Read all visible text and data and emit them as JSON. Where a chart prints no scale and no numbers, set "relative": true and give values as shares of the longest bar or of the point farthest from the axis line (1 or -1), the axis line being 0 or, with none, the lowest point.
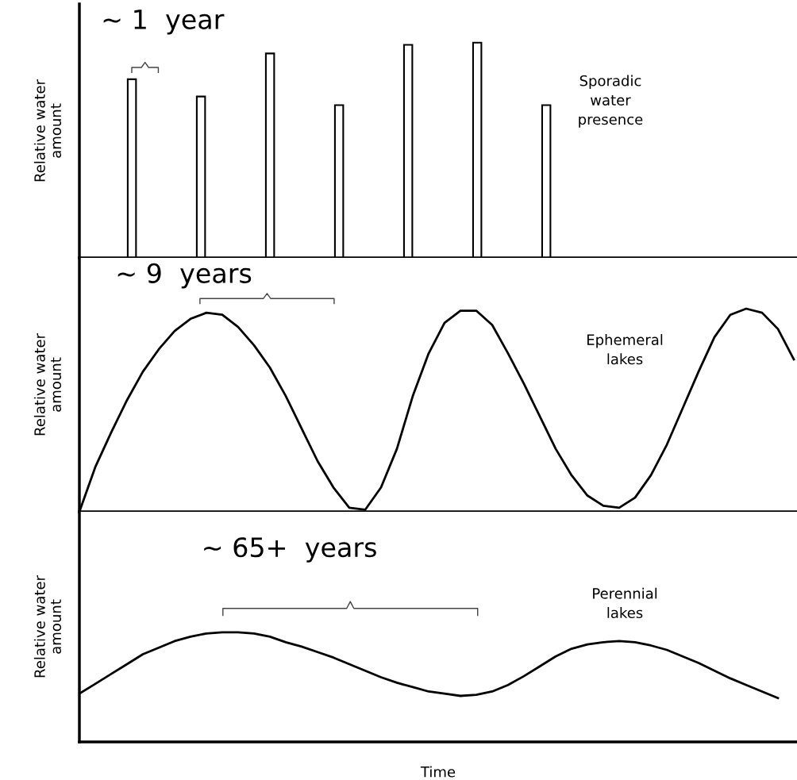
{
  "chart_data": [
    {
      "type": "bar",
      "relative": true,
      "ylabel": "Relative water\namount",
      "categories": [
        null,
        null,
        null,
        null,
        null,
        null,
        null
      ],
      "series": [
        {
          "color": "#ffffff",
          "values": [
            0.83,
            0.75,
            0.95,
            0.71,
            0.99,
            1,
            0.71
          ]
        }
      ],
      "annotations": [
        "~ 1  year",
        "Sporadic\nwater\npresence"
      ],
      "grid": false,
      "legend": false,
      "tick_labels": false
    },
    {
      "type": "line",
      "relative": true,
      "ylabel": "Relative water\namount",
      "categories": [
        null,
        null,
        null,
        null,
        null,
        null,
        null,
        null,
        null,
        null,
        null,
        null,
        null,
        null,
        null,
        null,
        null,
        null,
        null,
        null,
        null,
        null,
        null,
        null,
        null,
        null,
        null,
        null,
        null,
        null,
        null,
        null,
        null,
        null,
        null,
        null,
        null,
        null,
        null,
        null,
        null,
        null,
        null,
        null,
        null,
        null
      ],
      "series": [
        {
          "color": "#000000",
          "values": [
            0,
            0.22,
            0.39,
            0.55,
            0.69,
            0.8,
            0.89,
            0.95,
            0.98,
            0.97,
            0.91,
            0.82,
            0.71,
            0.57,
            0.41,
            0.25,
            0.12,
            0.02,
            0.01,
            0.12,
            0.31,
            0.57,
            0.78,
            0.93,
            0.99,
            0.99,
            0.92,
            0.78,
            0.63,
            0.47,
            0.31,
            0.18,
            0.08,
            0.03,
            0.02,
            0.07,
            0.18,
            0.33,
            0.51,
            0.69,
            0.86,
            0.97,
            1,
            0.98,
            0.9,
            0.75
          ]
        }
      ],
      "annotations": [
        "~ 9  years",
        "Ephemeral\nlakes"
      ],
      "grid": false,
      "legend": false,
      "tick_labels": false,
      "marker": "none",
      "line_style": "solid"
    },
    {
      "type": "line",
      "relative": true,
      "ylabel": "Relative water\namount",
      "xlabel": "Time",
      "categories": [
        null,
        null,
        null,
        null,
        null,
        null,
        null,
        null,
        null,
        null,
        null,
        null,
        null,
        null,
        null,
        null,
        null,
        null,
        null,
        null,
        null,
        null,
        null,
        null,
        null,
        null,
        null,
        null,
        null,
        null,
        null,
        null,
        null,
        null,
        null,
        null,
        null,
        null,
        null,
        null,
        null,
        null,
        null,
        null,
        null,
        null
      ],
      "series": [
        {
          "color": "#000000",
          "values": [
            0.44,
            0.53,
            0.62,
            0.71,
            0.8,
            0.86,
            0.92,
            0.96,
            0.99,
            1,
            1,
            0.99,
            0.96,
            0.91,
            0.87,
            0.82,
            0.77,
            0.71,
            0.65,
            0.59,
            0.54,
            0.5,
            0.46,
            0.44,
            0.42,
            0.43,
            0.46,
            0.52,
            0.6,
            0.69,
            0.78,
            0.85,
            0.89,
            0.91,
            0.92,
            0.91,
            0.88,
            0.84,
            0.78,
            0.72,
            0.65,
            0.58,
            0.52,
            0.46,
            0.4,
            null
          ]
        }
      ],
      "annotations": [
        "~ 65+  years",
        "Perennial\nlakes"
      ],
      "grid": false,
      "legend": false,
      "tick_labels": false,
      "marker": "none",
      "line_style": "solid"
    }
  ]
}
